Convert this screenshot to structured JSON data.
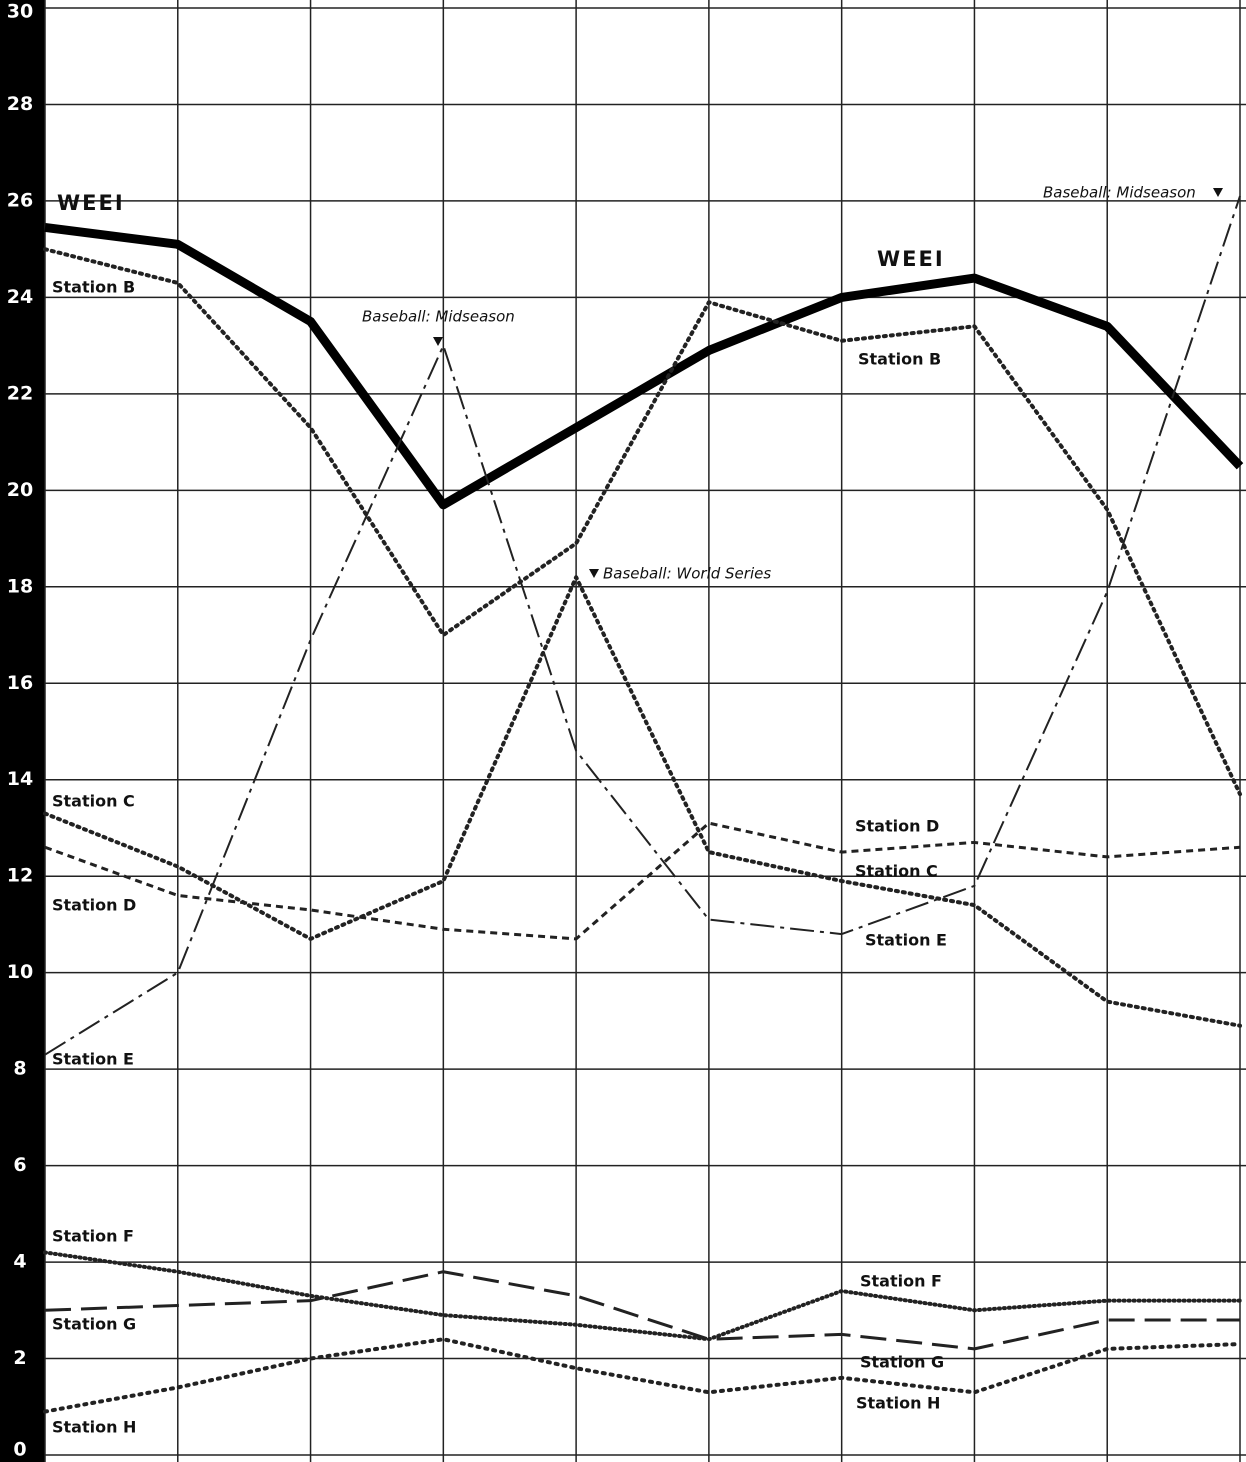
{
  "chart_data": {
    "type": "line",
    "categories": [
      null,
      null,
      null,
      null,
      null,
      null,
      null,
      null,
      null,
      null
    ],
    "series": [
      {
        "name": "WEEI",
        "color": "#000000",
        "values": [
          25.45,
          25.1,
          23.5,
          19.7,
          21.3,
          22.9,
          24.0,
          24.4,
          23.4,
          20.5
        ]
      },
      {
        "name": "Station B",
        "color": "#222222",
        "values": [
          25.0,
          24.3,
          21.3,
          17.0,
          18.9,
          23.9,
          23.1,
          23.4,
          19.6,
          13.7
        ]
      },
      {
        "name": "Station C",
        "color": "#222222",
        "values": [
          13.3,
          12.2,
          10.7,
          11.9,
          18.2,
          12.5,
          11.9,
          11.4,
          9.4,
          8.9
        ]
      },
      {
        "name": "Station D",
        "color": "#222222",
        "values": [
          12.6,
          11.6,
          11.3,
          10.9,
          10.7,
          13.1,
          12.5,
          12.7,
          12.4,
          12.6
        ]
      },
      {
        "name": "Station E",
        "color": "#222222",
        "values": [
          8.3,
          10.0,
          16.9,
          23.0,
          14.6,
          11.1,
          10.8,
          11.8,
          17.9,
          26.1
        ]
      },
      {
        "name": "Station F",
        "color": "#222222",
        "values": [
          4.2,
          3.8,
          3.3,
          2.9,
          2.7,
          2.4,
          3.4,
          3.0,
          3.2,
          3.2
        ]
      },
      {
        "name": "Station G",
        "color": "#222222",
        "values": [
          3.0,
          3.1,
          3.2,
          3.8,
          3.3,
          2.4,
          2.5,
          2.2,
          2.8,
          2.8
        ]
      },
      {
        "name": "Station H",
        "color": "#222222",
        "values": [
          0.9,
          1.4,
          2.0,
          2.4,
          1.8,
          1.3,
          1.6,
          1.3,
          2.2,
          2.3
        ]
      }
    ],
    "annotations": [
      "Baseball: Midseason",
      "Baseball: World Series",
      "Baseball: Midseason"
    ],
    "ylim": [
      0,
      30
    ],
    "yticks": [
      0,
      2,
      4,
      6,
      8,
      10,
      12,
      14,
      16,
      18,
      20,
      22,
      24,
      26,
      28,
      30
    ],
    "grid": true
  }
}
